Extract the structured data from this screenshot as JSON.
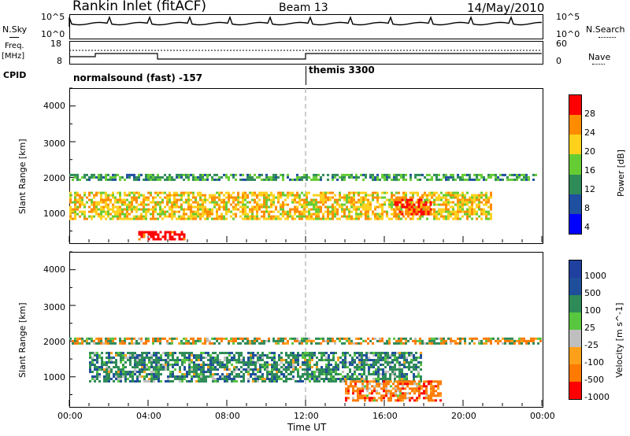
{
  "header": {
    "station": "Rankin Inlet (fitACF)",
    "beam": "Beam 13",
    "date": "14/May/2010"
  },
  "sidebar": {
    "nsky": "N.Sky",
    "freq_top": "Freq.",
    "freq_unit": "[MHz]",
    "cpid": "CPID",
    "nsearch": "N.Search",
    "nave": "Nave"
  },
  "cpid": {
    "first": "normalsound (fast) -157",
    "second": "themis 3300"
  },
  "small_axes": {
    "nsky_ticks": [
      "10^5",
      "10^0"
    ],
    "nsearch_ticks": [
      "10^5",
      "10^0"
    ],
    "freq_ticks": [
      "18",
      "8"
    ],
    "nave_ticks": [
      "60",
      "0"
    ]
  },
  "xaxis": {
    "label": "Time UT",
    "ticks": [
      "00:00",
      "04:00",
      "08:00",
      "12:00",
      "16:00",
      "20:00",
      "00:00"
    ]
  },
  "power_panel": {
    "ylabel": "Slant Range [km]",
    "yticks": [
      "4000",
      "3000",
      "2000",
      "1000"
    ],
    "colorbar_label": "Power [dB]",
    "colorbar_ticks": [
      "28",
      "24",
      "20",
      "16",
      "12",
      "8",
      "4"
    ],
    "colors": [
      "#0000ff",
      "#1f4fa0",
      "#2e8b57",
      "#66cc33",
      "#ffd11a",
      "#ff8c00",
      "#ff0000"
    ]
  },
  "velocity_panel": {
    "ylabel": "Slant Range [km]",
    "yticks": [
      "4000",
      "3000",
      "2000",
      "1000"
    ],
    "colorbar_label": "Velocity [m s^-1]",
    "colorbar_ticks": [
      "1000",
      "500",
      "100",
      "25",
      "-25",
      "-100",
      "-500",
      "-1000"
    ],
    "colors": [
      "#2040a0",
      "#1f4f9a",
      "#2e8b57",
      "#59c63f",
      "#bfbfbf",
      "#ffa01a",
      "#ff7a00",
      "#ff0000"
    ]
  },
  "chart_data": [
    {
      "type": "heatmap",
      "title": "Power",
      "xlabel": "Time UT",
      "ylabel": "Slant Range [km]",
      "xlim": [
        "00:00",
        "24:00"
      ],
      "ylim": [
        180,
        4500
      ],
      "colorbar": {
        "label": "Power [dB]",
        "range": [
          0,
          30
        ]
      },
      "features": [
        {
          "name": "band_2000km",
          "time": [
            "00:00",
            "24:00"
          ],
          "range_km": [
            1850,
            2100
          ],
          "power_db": 12
        },
        {
          "name": "band_1000km",
          "time": [
            "00:00",
            "21:30"
          ],
          "range_km": [
            800,
            1600
          ],
          "power_db": 20
        },
        {
          "name": "hot_spot_morning",
          "time": [
            "03:30",
            "06:00"
          ],
          "range_km": [
            180,
            500
          ],
          "power_db": 30
        },
        {
          "name": "hot_spot_afternoon",
          "time": [
            "16:30",
            "18:30"
          ],
          "range_km": [
            900,
            1400
          ],
          "power_db": 28
        }
      ]
    },
    {
      "type": "heatmap",
      "title": "Velocity",
      "xlabel": "Time UT",
      "ylabel": "Slant Range [km]",
      "xlim": [
        "00:00",
        "24:00"
      ],
      "ylim": [
        180,
        4500
      ],
      "colorbar": {
        "label": "Velocity [m s^-1]",
        "range": [
          -1000,
          1000
        ]
      },
      "features": [
        {
          "name": "band_2000km",
          "time": [
            "00:00",
            "24:00"
          ],
          "range_km": [
            1850,
            2100
          ],
          "velocity": 0
        },
        {
          "name": "band_1000km",
          "time": [
            "01:00",
            "18:00"
          ],
          "range_km": [
            800,
            1700
          ],
          "velocity": 300
        },
        {
          "name": "negative_patch",
          "time": [
            "14:00",
            "19:00"
          ],
          "range_km": [
            300,
            900
          ],
          "velocity": -300
        }
      ]
    }
  ]
}
